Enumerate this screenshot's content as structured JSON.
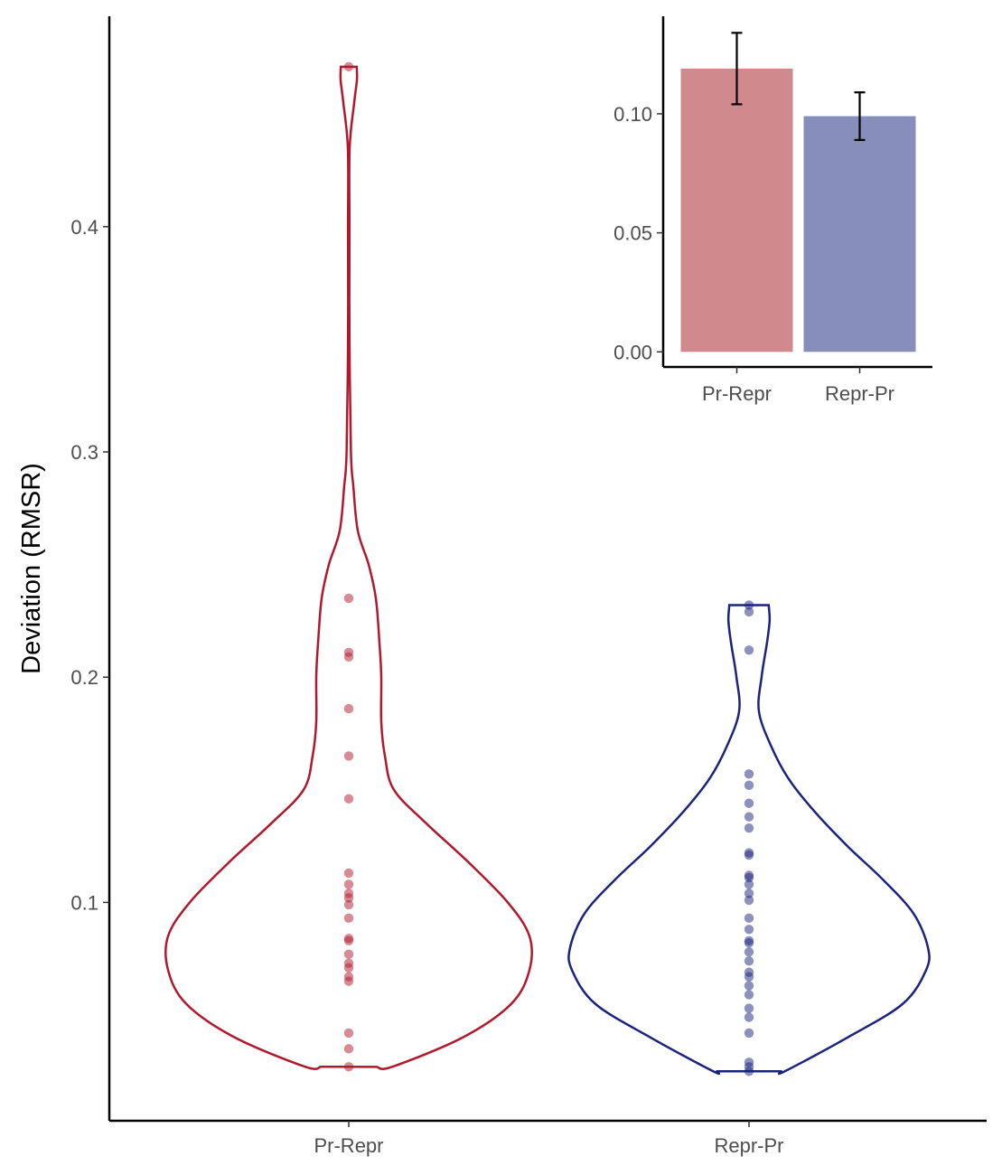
{
  "chart_data": [
    {
      "type": "violin",
      "xlabel": "",
      "ylabel": "Deviation (RMSR)",
      "ylim": [
        0.0,
        0.495
      ],
      "yticks": [
        0.1,
        0.2,
        0.3,
        0.4
      ],
      "ytick_labels": [
        "0.1",
        "0.2",
        "0.3",
        "0.4"
      ],
      "categories": [
        "Pr-Repr",
        "Repr-Pr"
      ],
      "grid": false,
      "legend": "none",
      "series": [
        {
          "category": "Pr-Repr",
          "color": "#b2182b",
          "points": [
            0.471,
            0.235,
            0.211,
            0.209,
            0.186,
            0.165,
            0.146,
            0.113,
            0.108,
            0.104,
            0.102,
            0.099,
            0.093,
            0.084,
            0.083,
            0.077,
            0.073,
            0.071,
            0.067,
            0.065,
            0.042,
            0.035,
            0.027
          ],
          "density": [
            [
              0.027,
              0.155
            ],
            [
              0.027,
              0.24
            ],
            [
              0.04,
              0.63
            ],
            [
              0.055,
              0.9
            ],
            [
              0.07,
              1.0
            ],
            [
              0.085,
              1.0
            ],
            [
              0.1,
              0.88
            ],
            [
              0.118,
              0.66
            ],
            [
              0.135,
              0.43
            ],
            [
              0.15,
              0.25
            ],
            [
              0.165,
              0.2
            ],
            [
              0.18,
              0.18
            ],
            [
              0.2,
              0.18
            ],
            [
              0.215,
              0.17
            ],
            [
              0.235,
              0.15
            ],
            [
              0.25,
              0.11
            ],
            [
              0.265,
              0.05
            ],
            [
              0.285,
              0.025
            ],
            [
              0.3,
              0.012
            ],
            [
              0.35,
              0.004
            ],
            [
              0.4,
              0.004
            ],
            [
              0.435,
              0.005
            ],
            [
              0.455,
              0.03
            ],
            [
              0.465,
              0.045
            ],
            [
              0.471,
              0.044
            ]
          ]
        },
        {
          "category": "Repr-Pr",
          "color": "#1a237e",
          "points": [
            0.232,
            0.229,
            0.212,
            0.157,
            0.152,
            0.144,
            0.138,
            0.133,
            0.122,
            0.121,
            0.112,
            0.111,
            0.108,
            0.104,
            0.101,
            0.093,
            0.088,
            0.083,
            0.082,
            0.078,
            0.074,
            0.069,
            0.067,
            0.063,
            0.059,
            0.053,
            0.049,
            0.042,
            0.029,
            0.027,
            0.025
          ],
          "density": [
            [
              0.025,
              0.18
            ],
            [
              0.025,
              0.2
            ],
            [
              0.04,
              0.55
            ],
            [
              0.055,
              0.86
            ],
            [
              0.07,
              0.99
            ],
            [
              0.08,
              1.0
            ],
            [
              0.095,
              0.92
            ],
            [
              0.11,
              0.75
            ],
            [
              0.125,
              0.55
            ],
            [
              0.14,
              0.37
            ],
            [
              0.155,
              0.22
            ],
            [
              0.17,
              0.12
            ],
            [
              0.185,
              0.055
            ],
            [
              0.2,
              0.07
            ],
            [
              0.215,
              0.1
            ],
            [
              0.225,
              0.115
            ],
            [
              0.232,
              0.11
            ]
          ]
        }
      ]
    },
    {
      "type": "bar",
      "categories": [
        "Pr-Repr",
        "Repr-Pr"
      ],
      "values": [
        0.119,
        0.099
      ],
      "errors": [
        [
          0.104,
          0.134
        ],
        [
          0.089,
          0.109
        ]
      ],
      "colors": [
        "#d08a8e",
        "#878ebb"
      ],
      "ylim": [
        0.0,
        0.14
      ],
      "yticks": [
        0.0,
        0.05,
        0.1
      ],
      "ytick_labels": [
        "0.00",
        "0.05",
        "0.10"
      ],
      "xlabel": "",
      "ylabel": "",
      "grid": false
    }
  ]
}
